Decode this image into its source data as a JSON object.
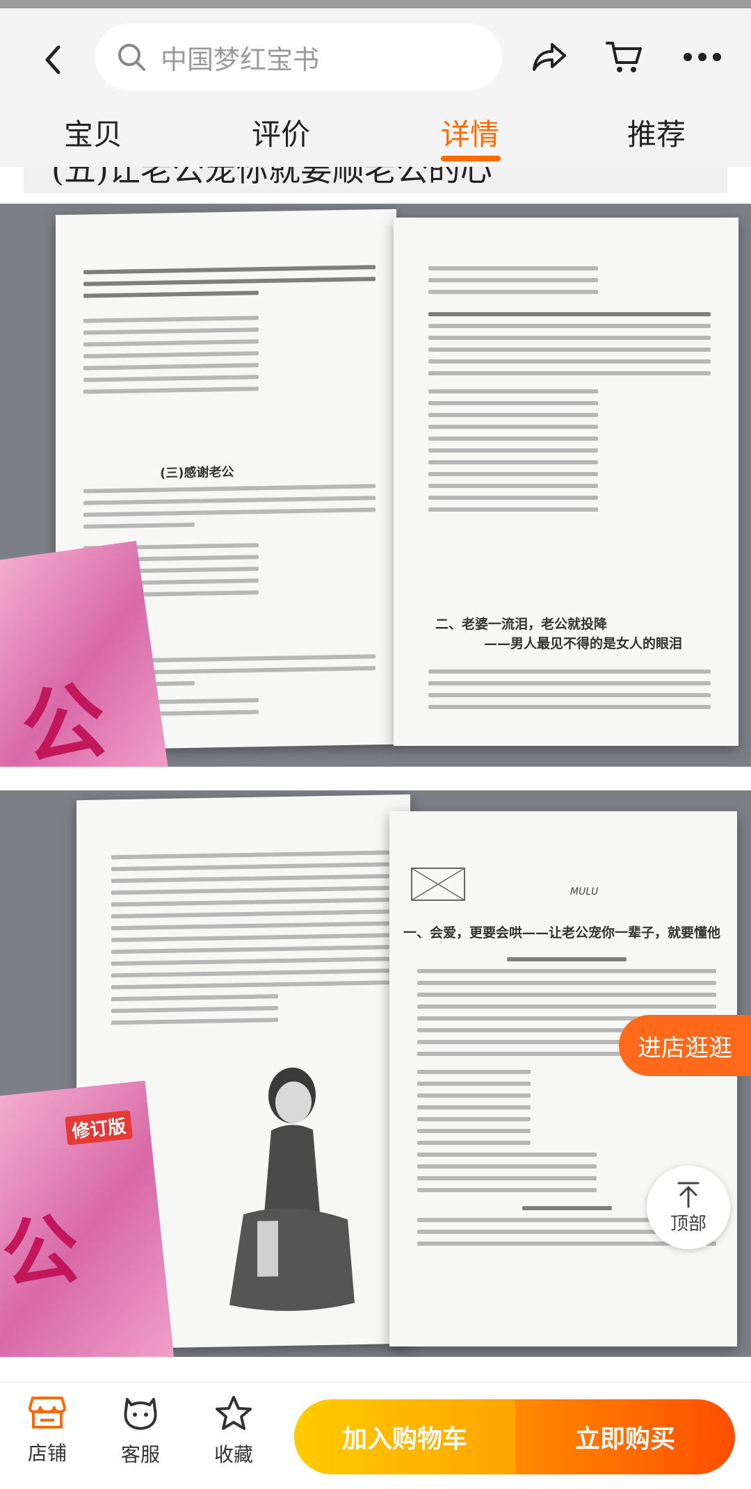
{
  "header": {
    "search_placeholder": "中国梦红宝书",
    "tabs": [
      {
        "label": "宝贝",
        "active": false
      },
      {
        "label": "评价",
        "active": false
      },
      {
        "label": "详情",
        "active": true
      },
      {
        "label": "推荐",
        "active": false
      }
    ],
    "icons": [
      "back-arrow-icon",
      "search-icon",
      "share-icon",
      "cart-icon",
      "more-icon"
    ]
  },
  "content": {
    "section_caption": "(五)让老公宠你就要顺老公的心",
    "photos": [
      {
        "left_page_heading": "(三)感谢老公",
        "right_page_heading": "二、老婆一流泪，老公就投降",
        "right_page_subheading": "——男人最见不得的是女人的眼泪"
      },
      {
        "right_page_title": "一、会爱，更要会哄——让老公宠你一辈子，就要懂他",
        "mulu_label": "MULU",
        "book_series": "修订版"
      }
    ]
  },
  "floating": {
    "shop_label": "进店逛逛",
    "top_label": "顶部"
  },
  "bottom_bar": {
    "shop_label": "店铺",
    "service_label": "客服",
    "favorite_label": "收藏",
    "add_cart_label": "加入购物车",
    "buy_now_label": "立即购买"
  },
  "colors": {
    "accent": "#ff6a00",
    "cart_button": "#ffb800",
    "buy_button": "#ff5a00"
  }
}
